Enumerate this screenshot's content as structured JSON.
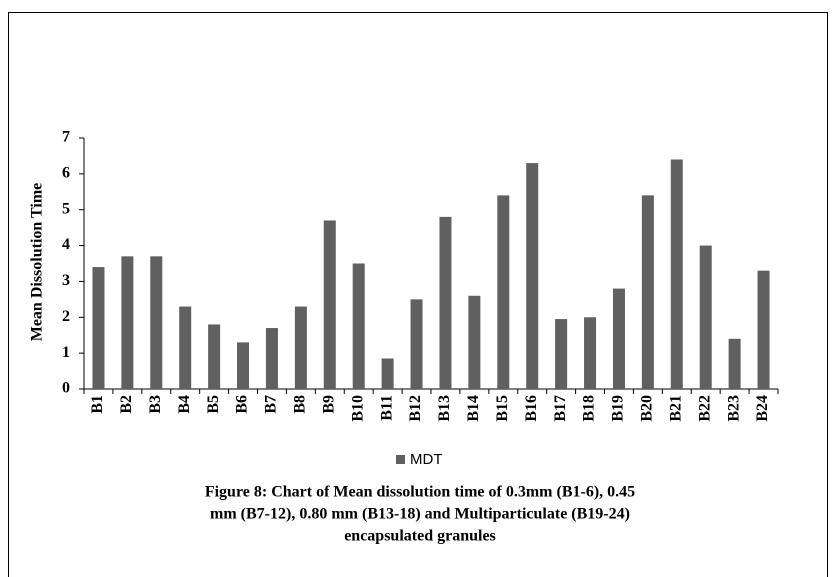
{
  "chart_data": {
    "type": "bar",
    "ylabel": "Mean Dissolution Time",
    "categories": [
      "B1",
      "B2",
      "B3",
      "B4",
      "B5",
      "B6",
      "B7",
      "B8",
      "B9",
      "B10",
      "B11",
      "B12",
      "B13",
      "B14",
      "B15",
      "B16",
      "B17",
      "B18",
      "B19",
      "B20",
      "B21",
      "B22",
      "B23",
      "B24"
    ],
    "series": [
      {
        "name": "MDT",
        "color": "#606060",
        "values": [
          3.4,
          3.7,
          3.7,
          2.3,
          1.8,
          1.3,
          1.7,
          2.3,
          4.7,
          3.5,
          0.85,
          2.5,
          4.8,
          2.6,
          5.4,
          6.3,
          1.95,
          2.0,
          2.8,
          5.4,
          6.4,
          4.0,
          1.4,
          3.3
        ]
      }
    ],
    "ylim": [
      0,
      7
    ],
    "yticks": [
      0,
      1,
      2,
      3,
      4,
      5,
      6,
      7
    ],
    "grid": false,
    "legend": "bottom",
    "caption": [
      "Figure 8: Chart of Mean dissolution time of 0.3mm (B1-6), 0.45",
      "mm (B7-12), 0.80 mm (B13-18) and Multiparticulate (B19-24)",
      "encapsulated granules"
    ]
  }
}
